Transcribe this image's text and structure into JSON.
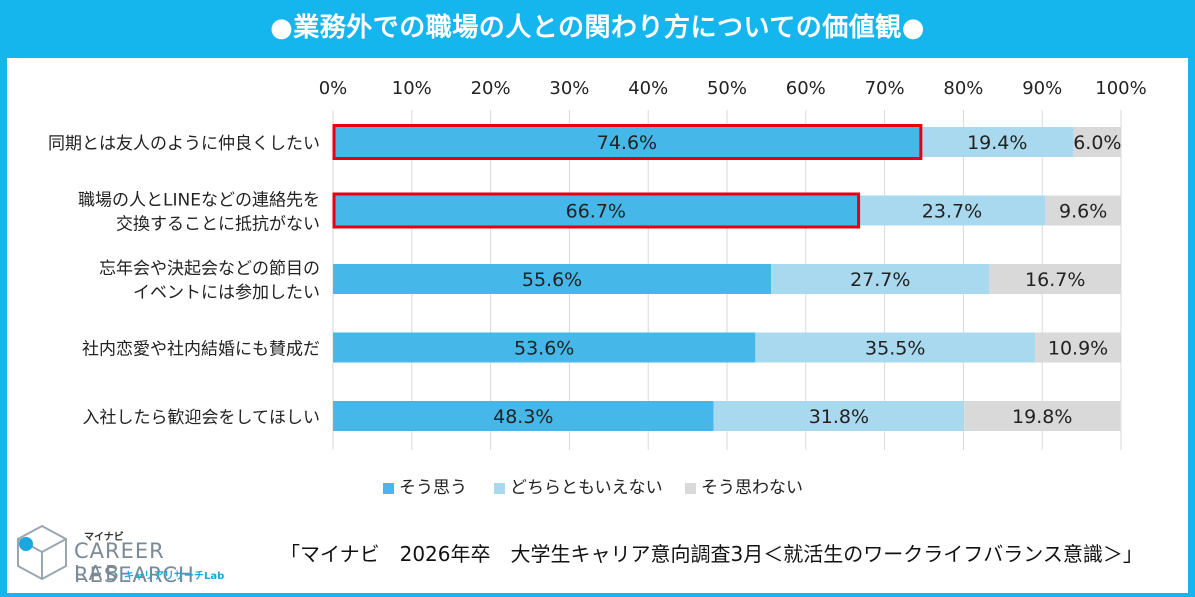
{
  "title": "●業務外での職場の人との関わり方についての価値観●",
  "source": "「マイナビ　2026年卒　大学生キャリア意向調査3月＜就活生のワークライフバランス意識＞」",
  "logo": {
    "line1": "マイナビ",
    "line2": "CAREER RESEARCH",
    "line3": "LAB",
    "line4": "キャリアリサーチLab"
  },
  "colors": {
    "series1": "#45b7e8",
    "series2": "#a9d9ee",
    "series3": "#d9d9d9",
    "highlight": "#e60012",
    "frame": "#15b6ee"
  },
  "chart_data": {
    "type": "bar",
    "orientation": "horizontal",
    "stacked": true,
    "percent": true,
    "categories": [
      [
        "同期とは友人のように仲良くしたい"
      ],
      [
        "職場の人とLINEなどの連絡先を",
        "交換することに抵抗がない"
      ],
      [
        "忘年会や決起会などの節目の",
        "イベントには参加したい"
      ],
      [
        "社内恋愛や社内結婚にも賛成だ"
      ],
      [
        "入社したら歓迎会をしてほしい"
      ]
    ],
    "series": [
      {
        "name": "そう思う",
        "values": [
          74.6,
          66.7,
          55.6,
          53.6,
          48.3
        ],
        "labels": [
          "74.6%",
          "66.7%",
          "55.6%",
          "53.6%",
          "48.3%"
        ]
      },
      {
        "name": "どちらともいえない",
        "values": [
          19.4,
          23.7,
          27.7,
          35.5,
          31.8
        ],
        "labels": [
          "19.4%",
          "23.7%",
          "27.7%",
          "35.5%",
          "31.8%"
        ]
      },
      {
        "name": "そう思わない",
        "values": [
          6.0,
          9.6,
          16.7,
          10.9,
          19.8
        ],
        "labels": [
          "6.0%",
          "9.6%",
          "16.7%",
          "10.9%",
          "19.8%"
        ]
      }
    ],
    "highlighted_bars": [
      0,
      1
    ],
    "xlim": [
      0,
      100
    ],
    "x_ticks": [
      "0%",
      "10%",
      "20%",
      "30%",
      "40%",
      "50%",
      "60%",
      "70%",
      "80%",
      "90%",
      "100%"
    ],
    "legend_position": "bottom",
    "grid": true
  }
}
